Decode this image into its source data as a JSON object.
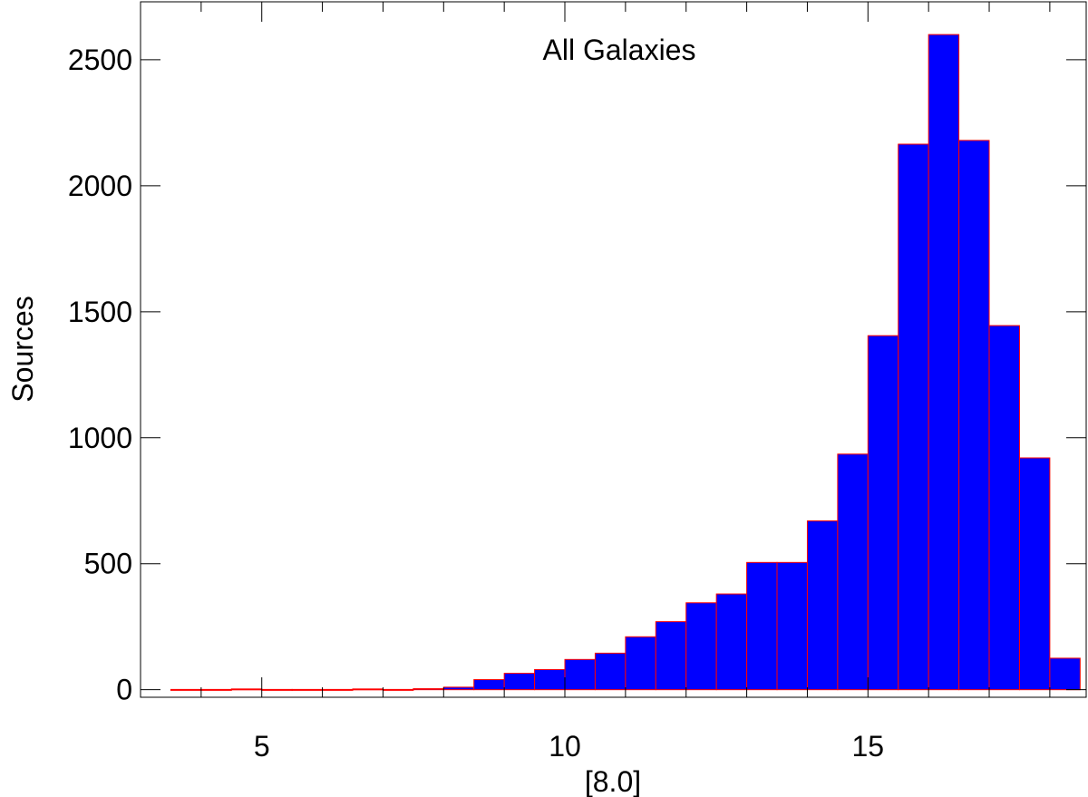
{
  "chart_data": {
    "type": "bar",
    "annotation": "All Galaxies",
    "xlabel": "[8.0]",
    "ylabel": "Sources",
    "xlim": [
      3.0,
      18.6
    ],
    "ylim": [
      -30,
      2730
    ],
    "xticks": [
      5,
      10,
      15
    ],
    "yticks": [
      0,
      500,
      1000,
      1500,
      2000,
      2500
    ],
    "bin_width": 0.5,
    "bin_left_edges": [
      3.5,
      4.0,
      4.5,
      5.0,
      5.5,
      6.0,
      6.5,
      7.0,
      7.5,
      8.0,
      8.5,
      9.0,
      9.5,
      10.0,
      10.5,
      11.0,
      11.5,
      12.0,
      12.5,
      13.0,
      13.5,
      14.0,
      14.5,
      15.0,
      15.5,
      16.0,
      16.5,
      17.0,
      17.5,
      18.0
    ],
    "values": [
      1,
      1,
      3,
      1,
      1,
      1,
      3,
      1,
      4,
      10,
      40,
      65,
      80,
      120,
      145,
      210,
      270,
      345,
      380,
      505,
      505,
      670,
      935,
      1405,
      2165,
      2600,
      2180,
      1445,
      920,
      125
    ],
    "grid": false,
    "legend": "none",
    "colors": {
      "bar_fill": "#0000ff",
      "bar_edge": "#ff0000",
      "axis": "#000000"
    }
  }
}
